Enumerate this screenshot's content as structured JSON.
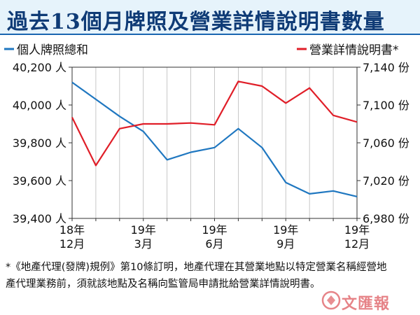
{
  "header": {
    "title": "過去13個月牌照及營業詳情說明書數量"
  },
  "chart_data": {
    "type": "line",
    "title": "過去13個月牌照及營業詳情說明書數量",
    "x": [
      "18年12月",
      "19年1月",
      "19年2月",
      "19年3月",
      "19年4月",
      "19年5月",
      "19年6月",
      "19年7月",
      "19年8月",
      "19年9月",
      "19年10月",
      "19年11月",
      "19年12月"
    ],
    "tick_labels": [
      {
        "index": 0,
        "lines": [
          "18年",
          "12月"
        ]
      },
      {
        "index": 3,
        "lines": [
          "19年",
          "3月"
        ]
      },
      {
        "index": 6,
        "lines": [
          "19年",
          "6月"
        ]
      },
      {
        "index": 9,
        "lines": [
          "19年",
          "9月"
        ]
      },
      {
        "index": 12,
        "lines": [
          "19年",
          "12月"
        ]
      }
    ],
    "left_axis": {
      "ylim": [
        39400,
        40200
      ],
      "ticks": [
        39400,
        39600,
        39800,
        40000,
        40200
      ],
      "tick_labels": [
        "39,400 人",
        "39,600 人",
        "39,800 人",
        "40,000 人",
        "40,200 人"
      ]
    },
    "right_axis": {
      "ylim": [
        6980,
        7140
      ],
      "ticks": [
        6980,
        7020,
        7060,
        7100,
        7140
      ],
      "tick_labels": [
        "6,980 份",
        "7,020 份",
        "7,060 份",
        "7,100 份",
        "7,140 份"
      ]
    },
    "series": [
      {
        "name": "個人牌照總和",
        "axis": "left",
        "color": "#1f77c0",
        "values": [
          40120,
          40030,
          39940,
          39860,
          39710,
          39750,
          39775,
          39875,
          39775,
          39590,
          39530,
          39545,
          39515
        ]
      },
      {
        "name": "營業詳情說明書*",
        "axis": "right",
        "color": "#e01e28",
        "values": [
          7087,
          7036,
          7075,
          7080,
          7080,
          7081,
          7079,
          7125,
          7120,
          7102,
          7118,
          7089,
          7082
        ]
      }
    ],
    "grid": "vertical",
    "legend": "top"
  },
  "footnote": {
    "text": "*《地產代理(發牌)規例》第10條訂明，地產代理在其營業地點以特定營業名稱經營地產代理業務前，須就該地點及名稱向監管局申請批給營業詳情說明書。"
  },
  "logo": {
    "text": "文匯報",
    "color": "#d21f26"
  }
}
